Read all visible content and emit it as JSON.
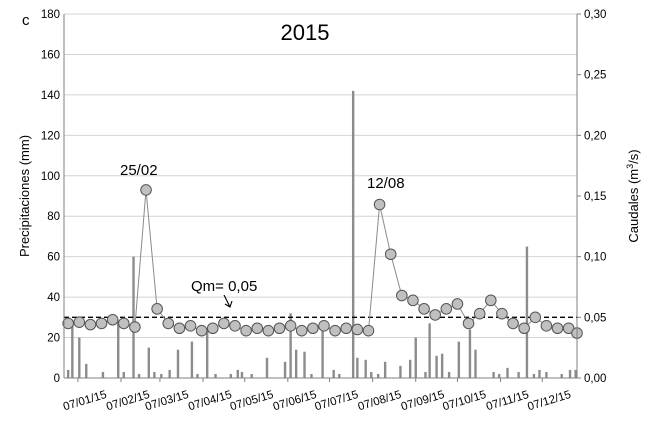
{
  "panel_label": "c",
  "chart_data": {
    "type": "bar+line",
    "title": "2015",
    "y_left": {
      "label": "Precipitaciones (mm)",
      "min": 0,
      "max": 180,
      "ticks": [
        "0",
        "20",
        "40",
        "60",
        "80",
        "100",
        "120",
        "140",
        "160",
        "180"
      ]
    },
    "y_right": {
      "label_main": "Caudales (m",
      "label_sup": "3",
      "label_tail": "/s)",
      "min": 0,
      "max": 0.3,
      "ticks": [
        "0,00",
        "0,05",
        "0,10",
        "0,15",
        "0,20",
        "0,25",
        "0,30"
      ]
    },
    "x_axis": {
      "start": "2014-12-28",
      "end": "2016-01-01",
      "tick_labels": [
        "07/01/15",
        "07/02/15",
        "07/03/15",
        "07/04/15",
        "07/05/15",
        "07/06/15",
        "07/07/15",
        "07/08/15",
        "07/09/15",
        "07/10/15",
        "07/11/15",
        "07/12/15"
      ]
    },
    "grid": true,
    "precipitation_series": {
      "name": "Precipitaciones",
      "color": "#8c8c8c",
      "dates": [
        "2014-12-31",
        "2015-01-03",
        "2015-01-08",
        "2015-01-13",
        "2015-01-25",
        "2015-02-05",
        "2015-02-09",
        "2015-02-16",
        "2015-02-20",
        "2015-02-27",
        "2015-03-03",
        "2015-03-08",
        "2015-03-14",
        "2015-03-20",
        "2015-03-30",
        "2015-04-03",
        "2015-04-10",
        "2015-04-16",
        "2015-04-27",
        "2015-05-02",
        "2015-05-05",
        "2015-05-12",
        "2015-05-23",
        "2015-06-05",
        "2015-06-09",
        "2015-06-13",
        "2015-06-19",
        "2015-06-24",
        "2015-07-02",
        "2015-07-10",
        "2015-07-14",
        "2015-07-24",
        "2015-07-27",
        "2015-08-02",
        "2015-08-06",
        "2015-08-11",
        "2015-08-16",
        "2015-08-27",
        "2015-09-03",
        "2015-09-07",
        "2015-09-14",
        "2015-09-17",
        "2015-09-22",
        "2015-09-26",
        "2015-10-01",
        "2015-10-08",
        "2015-10-16",
        "2015-10-20",
        "2015-11-02",
        "2015-11-06",
        "2015-11-12",
        "2015-11-20",
        "2015-11-26",
        "2015-12-01",
        "2015-12-05",
        "2015-12-10",
        "2015-12-21",
        "2015-12-27",
        "2015-12-31"
      ],
      "values": [
        4,
        28,
        20,
        7,
        3,
        28,
        3,
        60,
        2,
        15,
        3,
        2,
        4,
        14,
        18,
        2,
        24,
        2,
        2,
        4,
        3,
        2,
        10,
        8,
        32,
        14,
        13,
        2,
        26,
        4,
        2,
        142,
        10,
        9,
        3,
        2,
        8,
        6,
        9,
        20,
        3,
        27,
        11,
        12,
        3,
        18,
        24,
        14,
        3,
        2,
        5,
        3,
        65,
        2,
        4,
        3,
        2,
        4,
        4
      ]
    },
    "flow_series": {
      "name": "Caudales",
      "color": "#c0c0c0",
      "dates": [
        "2014-12-31",
        "2015-01-08",
        "2015-01-16",
        "2015-01-24",
        "2015-02-01",
        "2015-02-09",
        "2015-02-17",
        "2015-02-25",
        "2015-03-05",
        "2015-03-13",
        "2015-03-21",
        "2015-03-29",
        "2015-04-06",
        "2015-04-14",
        "2015-04-22",
        "2015-04-30",
        "2015-05-08",
        "2015-05-16",
        "2015-05-24",
        "2015-06-01",
        "2015-06-09",
        "2015-06-17",
        "2015-06-25",
        "2015-07-03",
        "2015-07-11",
        "2015-07-19",
        "2015-07-27",
        "2015-08-04",
        "2015-08-12",
        "2015-08-20",
        "2015-08-28",
        "2015-09-05",
        "2015-09-13",
        "2015-09-21",
        "2015-09-29",
        "2015-10-07",
        "2015-10-15",
        "2015-10-23",
        "2015-10-31",
        "2015-11-08",
        "2015-11-16",
        "2015-11-24",
        "2015-12-02",
        "2015-12-10",
        "2015-12-18",
        "2015-12-26",
        "2016-01-01"
      ],
      "values": [
        0.045,
        0.046,
        0.044,
        0.045,
        0.048,
        0.045,
        0.042,
        0.155,
        0.057,
        0.045,
        0.041,
        0.043,
        0.039,
        0.041,
        0.045,
        0.043,
        0.039,
        0.041,
        0.039,
        0.041,
        0.043,
        0.039,
        0.041,
        0.043,
        0.039,
        0.041,
        0.04,
        0.039,
        0.143,
        0.102,
        0.068,
        0.064,
        0.057,
        0.052,
        0.057,
        0.061,
        0.045,
        0.053,
        0.064,
        0.053,
        0.045,
        0.041,
        0.05,
        0.043,
        0.041,
        0.041,
        0.037
      ]
    },
    "mean_flow_line": {
      "value": 0.05,
      "label": "Qm= 0,05"
    },
    "annotations": [
      {
        "text": "25/02",
        "date": "2015-02-25"
      },
      {
        "text": "12/08",
        "date": "2015-08-12"
      }
    ]
  }
}
